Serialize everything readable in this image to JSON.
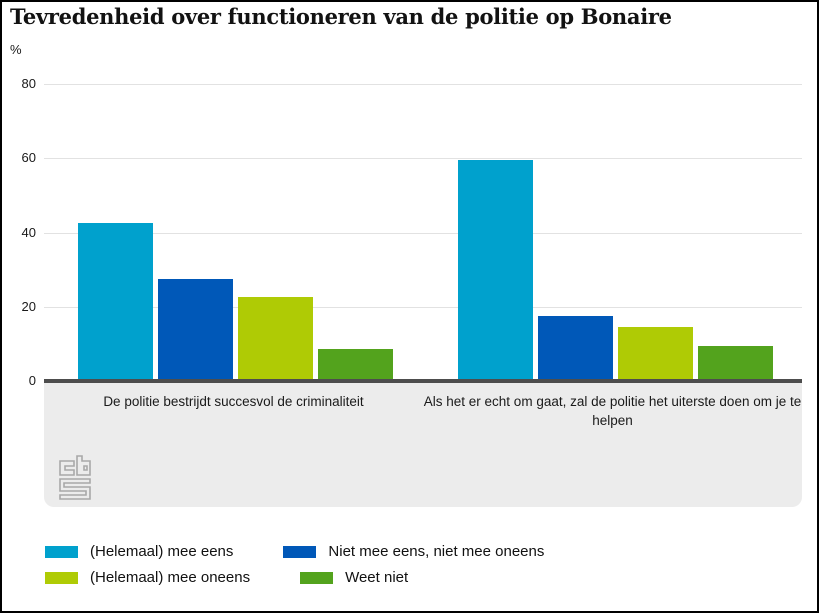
{
  "chart_data": {
    "type": "bar",
    "title": "Tevredenheid over functioneren van de politie op Bonaire",
    "ylabel": "%",
    "ylim": [
      0,
      80
    ],
    "yticks": [
      0,
      20,
      40,
      60,
      80
    ],
    "grid": true,
    "legend_position": "bottom",
    "categories": [
      "De politie bestrijdt succesvol de criminaliteit",
      "Als het er echt om gaat, zal de politie het uiterste doen om je te helpen"
    ],
    "series": [
      {
        "name": "(Helemaal) mee eens",
        "color": "#00a1cd",
        "values": [
          42,
          59
        ]
      },
      {
        "name": "Niet mee eens, niet mee oneens",
        "color": "#0058b8",
        "values": [
          27,
          17
        ]
      },
      {
        "name": "(Helemaal) mee oneens",
        "color": "#afcb05",
        "values": [
          22,
          14
        ]
      },
      {
        "name": "Weet niet",
        "color": "#53a31d",
        "values": [
          8,
          9
        ]
      }
    ],
    "colors": {
      "gridline": "#e2e2e2",
      "axis": "#4d4d4d",
      "band_background": "#ececec"
    }
  },
  "branding": {
    "logo": "cbs-logo"
  }
}
